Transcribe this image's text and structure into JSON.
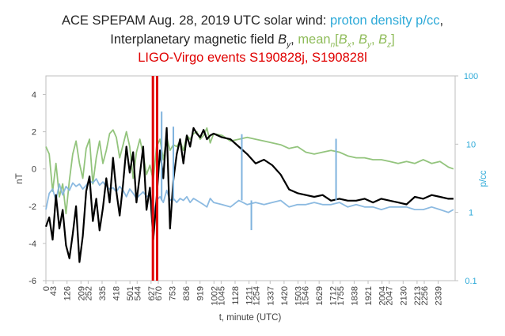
{
  "chart_data": {
    "type": "line",
    "title": {
      "line1_prefix": "ACE SPEPAM  Aug. 28, 2019 UTC solar wind: ",
      "line1_density": "proton density p/cc",
      "line1_suffix": ",",
      "line2_prefix": "Interplanetary magnetic field ",
      "line2_by_sym": "B",
      "line2_by_sub": "y",
      "line2_sep": ", ",
      "line2_mean": "mean",
      "line2_mean_sub": "n",
      "line2_br1": "[",
      "line2_bx_sym": "B",
      "line2_bx_sub": "x",
      "line2_comma1": ", ",
      "line2_by2_sym": "B",
      "line2_by2_sub": "y",
      "line2_comma2": ", ",
      "line2_bz_sym": "B",
      "line2_bz_sub": "z",
      "line2_br2": "]",
      "line3": "LIGO-Virgo events S190828j, S190828l"
    },
    "xlabel": "t, minute (UTC)",
    "ylabel_left": "nT",
    "ylabel_right": "p/cc",
    "xlim": [
      0,
      2440
    ],
    "ylim_left": [
      -6,
      5
    ],
    "ylim_right": [
      0.1,
      100
    ],
    "right_axis_scale": "log",
    "x_ticks": [
      "0",
      "43",
      "126",
      "209",
      "252",
      "335",
      "418",
      "501",
      "544",
      "627",
      "670",
      "753",
      "836",
      "919",
      "1002",
      "1045",
      "1128",
      "1211",
      "1254",
      "1337",
      "1420",
      "1503",
      "1546",
      "1629",
      "1712",
      "1755",
      "1838",
      "1921",
      "2004",
      "2047",
      "2130",
      "2213",
      "2256",
      "2339"
    ],
    "x_tick_values": [
      0,
      43,
      126,
      209,
      252,
      335,
      418,
      501,
      544,
      627,
      670,
      753,
      836,
      919,
      1002,
      1045,
      1128,
      1211,
      1254,
      1337,
      1420,
      1503,
      1546,
      1629,
      1712,
      1755,
      1838,
      1921,
      2004,
      2047,
      2130,
      2213,
      2256,
      2339
    ],
    "y_left_ticks": [
      "4",
      "2",
      "0",
      "-2",
      "-4",
      "-6"
    ],
    "y_left_tick_values": [
      4,
      2,
      0,
      -2,
      -4,
      -6
    ],
    "y_right_ticks": [
      "100",
      "10",
      "1",
      "0.1"
    ],
    "y_right_tick_values": [
      100,
      10,
      1,
      0.1
    ],
    "events": [
      {
        "name": "S190828j",
        "t": 638
      },
      {
        "name": "S190828l",
        "t": 663
      }
    ],
    "series": [
      {
        "key": "mean",
        "axis": "left",
        "color": "#93c47d",
        "x": [
          0,
          20,
          40,
          60,
          80,
          100,
          120,
          140,
          160,
          180,
          200,
          220,
          240,
          260,
          280,
          300,
          320,
          340,
          360,
          380,
          400,
          420,
          440,
          460,
          480,
          500,
          520,
          540,
          560,
          580,
          600,
          620,
          640,
          660,
          680,
          700,
          720,
          740,
          760,
          780,
          800,
          820,
          840,
          860,
          880,
          900,
          920,
          940,
          960,
          980,
          1000,
          1050,
          1100,
          1150,
          1200,
          1250,
          1300,
          1350,
          1400,
          1450,
          1500,
          1550,
          1600,
          1650,
          1700,
          1750,
          1800,
          1850,
          1900,
          1950,
          2000,
          2050,
          2100,
          2150,
          2200,
          2250,
          2300,
          2350,
          2400,
          2430
        ],
        "y": [
          1.2,
          0.8,
          -1.2,
          0.3,
          -1.5,
          -0.8,
          -2.4,
          -0.6,
          0.8,
          1.5,
          0.3,
          -0.5,
          1.1,
          1.6,
          -0.8,
          0.6,
          1.5,
          0.3,
          1.0,
          1.9,
          2.1,
          1.7,
          0.6,
          1.3,
          2.0,
          1.2,
          -0.5,
          0.9,
          1.6,
          0.8,
          -0.3,
          0.2,
          -0.6,
          1.2,
          1.6,
          0.5,
          1.7,
          1.0,
          1.3,
          1.2,
          1.5,
          1.0,
          1.8,
          1.6,
          1.9,
          2.0,
          1.6,
          1.8,
          2.2,
          1.4,
          1.9,
          1.8,
          1.5,
          1.6,
          1.7,
          1.6,
          1.5,
          1.4,
          1.3,
          1.1,
          1.2,
          0.9,
          0.8,
          0.9,
          1.0,
          0.9,
          0.7,
          0.6,
          0.6,
          0.5,
          0.5,
          0.4,
          0.3,
          0.4,
          0.3,
          0.5,
          0.3,
          0.4,
          0.1,
          0.0
        ]
      },
      {
        "key": "by",
        "axis": "left",
        "color": "#000000",
        "x": [
          0,
          20,
          40,
          60,
          80,
          100,
          120,
          140,
          160,
          180,
          200,
          220,
          240,
          260,
          280,
          300,
          320,
          340,
          360,
          380,
          400,
          420,
          440,
          460,
          480,
          500,
          520,
          540,
          560,
          580,
          600,
          620,
          640,
          660,
          680,
          700,
          720,
          740,
          760,
          780,
          800,
          820,
          840,
          860,
          880,
          900,
          920,
          940,
          960,
          980,
          1000,
          1050,
          1100,
          1150,
          1200,
          1250,
          1300,
          1350,
          1400,
          1450,
          1500,
          1550,
          1600,
          1650,
          1700,
          1750,
          1800,
          1850,
          1900,
          1950,
          2000,
          2050,
          2100,
          2150,
          2200,
          2250,
          2300,
          2350,
          2400,
          2430
        ],
        "y": [
          -3.1,
          -2.6,
          -3.8,
          -1.4,
          -3.2,
          -2.2,
          -4.1,
          -4.8,
          -3.5,
          -2.0,
          -5.0,
          -3.6,
          -1.2,
          -0.4,
          -2.8,
          -1.6,
          -3.3,
          -2.1,
          -0.5,
          -1.8,
          0.6,
          -1.2,
          -2.5,
          -0.8,
          1.2,
          -0.2,
          0.9,
          -1.8,
          -0.3,
          1.2,
          -2.2,
          -1.0,
          -3.8,
          -1.6,
          1.0,
          -0.5,
          2.2,
          -3.2,
          -0.6,
          0.8,
          1.6,
          0.3,
          1.8,
          1.2,
          2.2,
          1.9,
          1.7,
          2.1,
          1.6,
          1.8,
          1.9,
          1.7,
          1.6,
          1.2,
          0.8,
          0.3,
          0.5,
          0.2,
          -0.3,
          -1.1,
          -1.3,
          -1.4,
          -1.5,
          -1.4,
          -1.7,
          -1.6,
          -1.7,
          -1.7,
          -1.6,
          -1.8,
          -1.6,
          -1.7,
          -1.8,
          -1.9,
          -1.5,
          -1.6,
          -1.4,
          -1.5,
          -1.6,
          -1.6
        ]
      },
      {
        "key": "density",
        "axis": "right",
        "color": "#7fb3de",
        "x": [
          0,
          20,
          40,
          60,
          80,
          100,
          120,
          140,
          160,
          180,
          200,
          220,
          240,
          260,
          280,
          300,
          320,
          340,
          360,
          380,
          400,
          420,
          440,
          460,
          480,
          500,
          520,
          540,
          560,
          580,
          600,
          620,
          640,
          660,
          680,
          700,
          720,
          740,
          760,
          780,
          800,
          820,
          840,
          860,
          880,
          900,
          920,
          940,
          960,
          980,
          1000,
          1050,
          1100,
          1150,
          1200,
          1250,
          1300,
          1350,
          1400,
          1450,
          1500,
          1550,
          1600,
          1650,
          1700,
          1750,
          1800,
          1850,
          1900,
          1950,
          2000,
          2050,
          2100,
          2150,
          2200,
          2250,
          2300,
          2350,
          2400,
          2430
        ],
        "y": [
          1.1,
          1.9,
          2.2,
          1.5,
          2.6,
          1.8,
          2.4,
          2.1,
          2.7,
          2.4,
          2.6,
          2.2,
          2.5,
          2.9,
          2.7,
          3.1,
          2.5,
          2.8,
          2.4,
          2.2,
          2.3,
          2.0,
          2.4,
          2.1,
          1.7,
          2.2,
          1.9,
          1.6,
          1.8,
          2.0,
          1.7,
          1.8,
          0.9,
          1.5,
          1.7,
          1.4,
          2.1,
          1.5,
          1.6,
          1.4,
          1.6,
          1.5,
          1.7,
          1.4,
          1.6,
          1.5,
          1.4,
          1.3,
          1.2,
          1.6,
          1.4,
          1.3,
          1.2,
          1.5,
          1.3,
          1.4,
          1.3,
          1.4,
          1.5,
          1.2,
          1.3,
          1.3,
          1.4,
          1.3,
          1.3,
          1.4,
          1.2,
          1.3,
          1.2,
          1.2,
          1.1,
          1.2,
          1.2,
          1.2,
          1.1,
          1.1,
          1.2,
          1.1,
          1.0,
          1.1
        ]
      }
    ],
    "spikes": [
      {
        "axis": "right",
        "x": 690,
        "y": 30
      },
      {
        "axis": "right",
        "x": 760,
        "y": 18
      },
      {
        "axis": "right",
        "x": 1168,
        "y": 14
      },
      {
        "axis": "right",
        "x": 1730,
        "y": 12
      },
      {
        "axis": "right",
        "x": 1225,
        "y": 0.55
      },
      {
        "axis": "right",
        "x": 635,
        "y": 0.55
      }
    ]
  }
}
